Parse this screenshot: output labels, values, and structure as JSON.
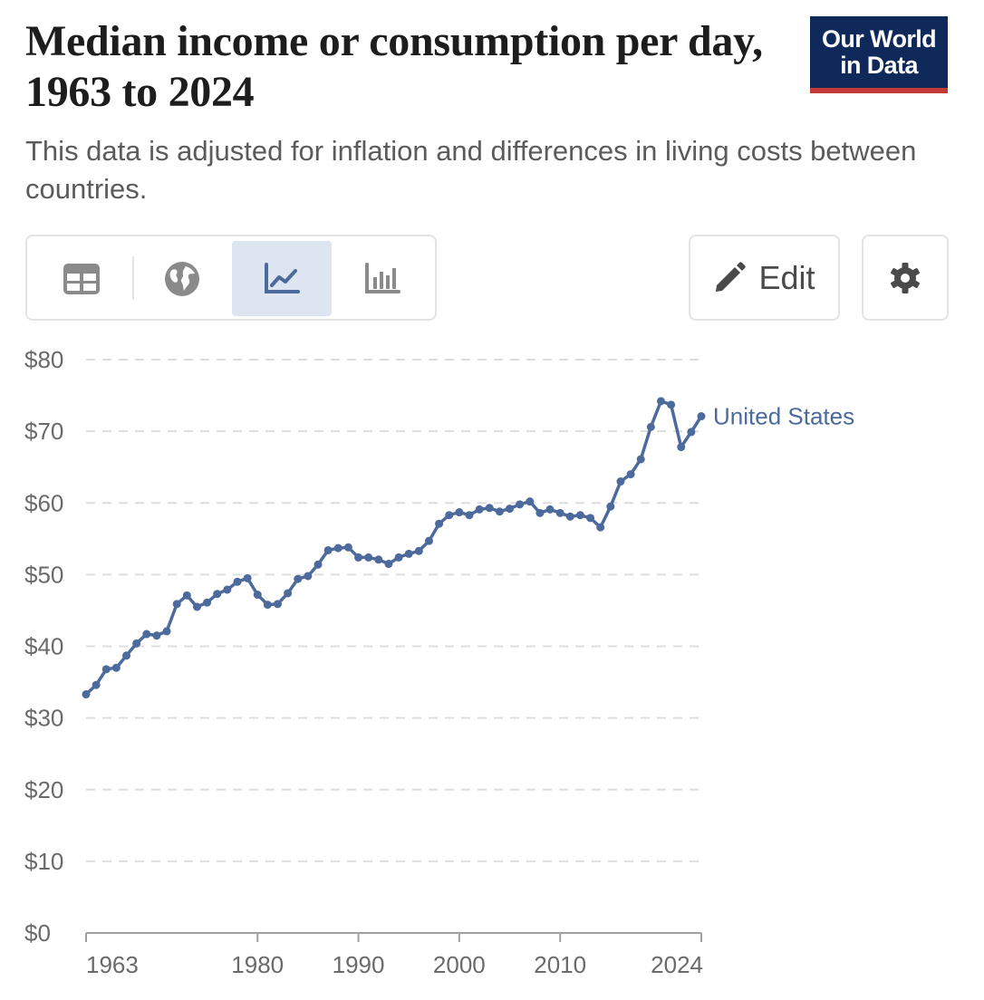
{
  "header": {
    "title": "Median income or consumption per day, 1963 to 2024",
    "subtitle": "This data is adjusted for inflation and differences in living costs between countries.",
    "logo_line1": "Our World",
    "logo_line2": "in Data"
  },
  "toolbar": {
    "tabs": [
      {
        "name": "table",
        "icon": "table-icon",
        "active": false
      },
      {
        "name": "map",
        "icon": "globe-icon",
        "active": false
      },
      {
        "name": "chart",
        "icon": "line-chart-icon",
        "active": true
      },
      {
        "name": "marimekko",
        "icon": "bar-chart-icon",
        "active": false
      }
    ],
    "edit_label": "Edit",
    "edit_icon": "pencil-icon",
    "settings_icon": "gear-icon"
  },
  "colors": {
    "series": "#4c6a9c",
    "grid": "#dddddd",
    "axis": "#a0a0a0",
    "tab_active": "#dde5f0",
    "icon": "#6e6e6e",
    "logo_bg": "#0f2a5a",
    "logo_accent": "#c23a38"
  },
  "chart_data": {
    "type": "line",
    "title": "",
    "xlabel": "",
    "ylabel": "",
    "xlim": [
      1963,
      2024
    ],
    "ylim": [
      0,
      80
    ],
    "grid": true,
    "y_ticks": [
      0,
      10,
      20,
      30,
      40,
      50,
      60,
      70,
      80
    ],
    "y_tick_labels": [
      "$0",
      "$10",
      "$20",
      "$30",
      "$40",
      "$50",
      "$60",
      "$70",
      "$80"
    ],
    "x_ticks": [
      1963,
      1980,
      1990,
      2000,
      2010,
      2024
    ],
    "x_tick_labels": [
      "1963",
      "1980",
      "1990",
      "2000",
      "2010",
      "2024"
    ],
    "series": [
      {
        "name": "United States",
        "x": [
          1963,
          1964,
          1965,
          1966,
          1967,
          1968,
          1969,
          1970,
          1971,
          1972,
          1973,
          1974,
          1975,
          1976,
          1977,
          1978,
          1979,
          1980,
          1981,
          1982,
          1983,
          1984,
          1985,
          1986,
          1987,
          1988,
          1989,
          1990,
          1991,
          1992,
          1993,
          1994,
          1995,
          1996,
          1997,
          1998,
          1999,
          2000,
          2001,
          2002,
          2003,
          2004,
          2005,
          2006,
          2007,
          2008,
          2009,
          2010,
          2011,
          2012,
          2013,
          2014,
          2015,
          2016,
          2017,
          2018,
          2019,
          2020,
          2021,
          2022,
          2023,
          2024
        ],
        "values": [
          33.3,
          34.6,
          36.8,
          37.0,
          38.7,
          40.4,
          41.7,
          41.5,
          42.1,
          45.9,
          47.1,
          45.5,
          46.1,
          47.3,
          47.9,
          49.0,
          49.5,
          47.2,
          45.8,
          45.9,
          47.4,
          49.4,
          49.8,
          51.4,
          53.4,
          53.7,
          53.8,
          52.4,
          52.4,
          52.1,
          51.5,
          52.4,
          52.9,
          53.3,
          54.7,
          57.1,
          58.3,
          58.7,
          58.3,
          59.1,
          59.3,
          58.8,
          59.2,
          59.8,
          60.2,
          58.6,
          59.1,
          58.6,
          58.1,
          58.3,
          57.9,
          56.6,
          59.5,
          63.0,
          64.0,
          66.1,
          70.6,
          74.2,
          73.7,
          67.8,
          69.9,
          72.1
        ]
      }
    ]
  }
}
